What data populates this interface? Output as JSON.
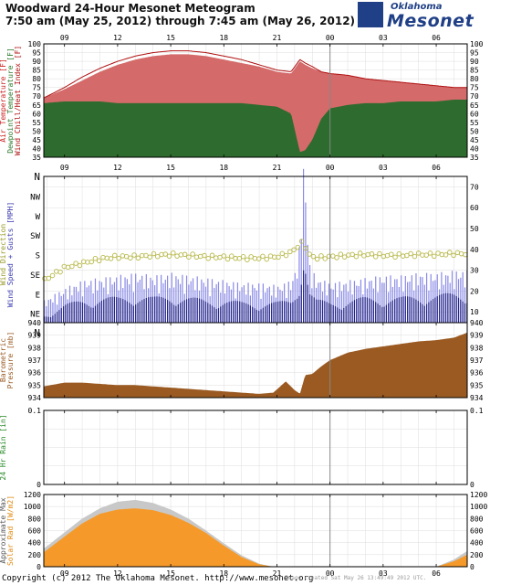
{
  "header": {
    "title": "Woodward 24-Hour Mesonet Meteogram",
    "subtitle": "7:50 am (May 25, 2012) through 7:45 am (May 26, 2012)"
  },
  "logo": {
    "line1": "Oklahoma",
    "line2": "Mesonet"
  },
  "footer": {
    "copyright": "Copyright (c) 2012 The Oklahoma Mesonet. http://www.mesonet.org",
    "stamp": "Image created Sat May 26 13:49:49 2012 UTC."
  },
  "colors": {
    "air_temp": "#d46a6a",
    "air_temp_line": "#b01010",
    "dewpoint": "#2e6b2e",
    "wind_speed": "#23238c",
    "wind_gust": "#8a8ae6",
    "wind_dir": "#b8b84a",
    "pressure": "#9a5a22",
    "solar": "#f59a2a",
    "solar_max": "#c8c8c8",
    "rain": "#2a8a2a"
  },
  "chart_data": [
    {
      "type": "area",
      "title": "",
      "ylabel": [
        "Air Temperature [F]",
        "Dewpoint Temperature [F]",
        "Wind Chill/Heat Index [F]"
      ],
      "ylim": [
        35,
        100
      ],
      "yticks": [
        35,
        40,
        45,
        50,
        55,
        60,
        65,
        70,
        75,
        80,
        85,
        90,
        95,
        100
      ],
      "xticks": [
        "09",
        "12",
        "15",
        "18",
        "21",
        "00",
        "03",
        "06"
      ],
      "x_hours_local": [
        7.83,
        9,
        10,
        11,
        12,
        13,
        14,
        15,
        16,
        17,
        18,
        19,
        20,
        21,
        21.8,
        22.3,
        22.6,
        23,
        23.5,
        24,
        25,
        26,
        27,
        28,
        29,
        30,
        31,
        31.75
      ],
      "series": [
        {
          "name": "Air Temperature",
          "values": [
            69,
            74,
            79,
            84,
            88,
            91,
            93,
            94,
            94,
            93,
            91,
            89,
            87,
            84,
            83,
            90,
            88,
            86,
            84,
            83,
            82,
            80,
            79,
            78,
            77,
            76,
            75,
            75
          ]
        },
        {
          "name": "Dewpoint Temperature",
          "values": [
            66,
            67,
            67,
            67,
            66,
            66,
            66,
            66,
            66,
            66,
            66,
            66,
            65,
            64,
            60,
            38,
            39,
            45,
            57,
            63,
            65,
            66,
            66,
            67,
            67,
            67,
            68,
            68
          ]
        },
        {
          "name": "Heat Index",
          "values": [
            69,
            75,
            81,
            86,
            90,
            93,
            95,
            96,
            96,
            95,
            93,
            91,
            88,
            85,
            84,
            91,
            89,
            87,
            84,
            83,
            82,
            80,
            79,
            78,
            77,
            76,
            75,
            75
          ]
        }
      ]
    },
    {
      "type": "bar",
      "title": "",
      "ylabel": [
        "Wind Direction",
        "Wind Speed + Gusts [MPH]"
      ],
      "ylim": [
        0,
        75
      ],
      "yticks": [
        0,
        5,
        10,
        15,
        20,
        25,
        30,
        35,
        40,
        45,
        50,
        55,
        60,
        65,
        70,
        75
      ],
      "direction_ticks": [
        "N",
        "NE",
        "E",
        "SE",
        "S",
        "SW",
        "W",
        "NW",
        "N"
      ],
      "xticks": [
        "09",
        "12",
        "15",
        "18",
        "21",
        "00",
        "03",
        "06"
      ],
      "x_hours_local": [
        7.83,
        9,
        10,
        11,
        12,
        13,
        14,
        15,
        16,
        17,
        18,
        19,
        20,
        21,
        21.8,
        22.2,
        22.5,
        22.8,
        23.2,
        24,
        25,
        26,
        27,
        28,
        29,
        30,
        31,
        31.75
      ],
      "series": [
        {
          "name": "Wind Speed",
          "values": [
            8,
            12,
            14,
            15,
            15,
            16,
            15,
            16,
            15,
            14,
            14,
            13,
            13,
            13,
            14,
            20,
            35,
            18,
            14,
            13,
            14,
            15,
            15,
            15,
            16,
            16,
            17,
            17
          ]
        },
        {
          "name": "Wind Gust",
          "values": [
            13,
            18,
            21,
            22,
            23,
            24,
            23,
            24,
            23,
            22,
            21,
            20,
            20,
            19,
            21,
            30,
            72,
            28,
            22,
            20,
            21,
            22,
            23,
            23,
            24,
            24,
            25,
            25
          ]
        },
        {
          "name": "Wind Direction",
          "unit": "degrees",
          "values": [
            120,
            150,
            160,
            170,
            175,
            175,
            178,
            180,
            178,
            175,
            174,
            172,
            172,
            175,
            185,
            200,
            210,
            180,
            172,
            175,
            178,
            180,
            178,
            178,
            180,
            180,
            182,
            182
          ]
        }
      ]
    },
    {
      "type": "area",
      "title": "",
      "ylabel": [
        "Barometric",
        "Pressure [mb]"
      ],
      "ylim": [
        934,
        940
      ],
      "yticks": [
        934,
        935,
        936,
        937,
        938,
        939,
        940
      ],
      "xticks": [
        "09",
        "12",
        "15",
        "18",
        "21",
        "00",
        "03",
        "06"
      ],
      "x_hours_local": [
        7.83,
        9,
        10,
        11,
        12,
        13,
        14,
        15,
        16,
        17,
        18,
        19,
        20,
        20.8,
        21.5,
        22.0,
        22.3,
        22.6,
        23,
        23.5,
        24,
        25,
        26,
        27,
        28,
        29,
        30,
        31,
        31.75
      ],
      "series": [
        {
          "name": "Pressure",
          "values": [
            934.9,
            935.2,
            935.2,
            935.1,
            935.0,
            935.0,
            934.9,
            934.8,
            934.7,
            934.6,
            934.5,
            934.4,
            934.3,
            934.4,
            935.3,
            934.6,
            934.3,
            935.8,
            935.9,
            936.5,
            937.0,
            937.6,
            937.9,
            938.1,
            938.3,
            938.5,
            938.6,
            938.8,
            939.2
          ]
        }
      ]
    },
    {
      "type": "bar",
      "title": "",
      "ylabel": [
        "24 Hr Rain [in]"
      ],
      "ylim": [
        0,
        0.1
      ],
      "yticks": [
        0,
        0.1
      ],
      "xticks": [
        "09",
        "12",
        "15",
        "18",
        "21",
        "00",
        "03",
        "06"
      ],
      "series": [
        {
          "name": "24 Hr Rain",
          "values": [
            0
          ]
        }
      ]
    },
    {
      "type": "area",
      "title": "",
      "ylabel": [
        "Approximate Max",
        "Solar Rad [W/m2]"
      ],
      "ylim": [
        0,
        1200
      ],
      "yticks": [
        0,
        200,
        400,
        600,
        800,
        1000,
        1200
      ],
      "xticks": [
        "09",
        "12",
        "15",
        "18",
        "21",
        "00",
        "03",
        "06"
      ],
      "x_hours_local": [
        7.83,
        9,
        10,
        11,
        12,
        13,
        14,
        15,
        16,
        17,
        18,
        19,
        20,
        20.8,
        21.5,
        30,
        31,
        31.75
      ],
      "series": [
        {
          "name": "Approximate Max",
          "values": [
            300,
            570,
            800,
            970,
            1080,
            1110,
            1060,
            950,
            800,
            600,
            390,
            190,
            50,
            0,
            0,
            0,
            120,
            260
          ]
        },
        {
          "name": "Solar Rad",
          "values": [
            240,
            500,
            720,
            880,
            950,
            970,
            940,
            860,
            730,
            560,
            350,
            160,
            40,
            0,
            0,
            0,
            90,
            200
          ]
        }
      ]
    }
  ]
}
